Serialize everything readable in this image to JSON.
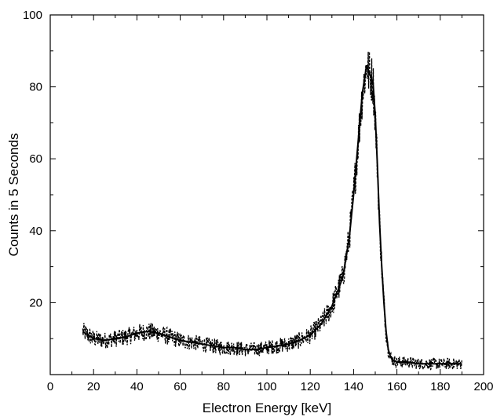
{
  "chart_data": {
    "type": "line",
    "title": "",
    "xlabel": "Electron Energy [keV]",
    "ylabel": "Counts in 5 Seconds",
    "xlim": [
      0,
      200
    ],
    "ylim": [
      0,
      100
    ],
    "x_ticks": [
      0,
      20,
      40,
      60,
      80,
      100,
      120,
      140,
      160,
      180,
      200
    ],
    "y_ticks": [
      20,
      40,
      60,
      80,
      100
    ],
    "grid": false,
    "legend": "none",
    "series": [
      {
        "color": "#000000",
        "style": "dashed-noisy",
        "x": [
          15,
          20,
          25,
          30,
          35,
          40,
          45,
          50,
          55,
          60,
          65,
          70,
          75,
          80,
          85,
          90,
          95,
          100,
          105,
          110,
          115,
          120,
          125,
          130,
          135,
          138,
          140,
          142,
          144,
          146,
          147,
          148,
          149,
          150,
          151,
          152,
          153,
          154,
          155,
          156,
          157,
          158,
          160,
          165,
          170,
          175,
          180,
          185,
          190
        ],
        "y": [
          12,
          10,
          9.5,
          10,
          10.5,
          11.5,
          12,
          11.5,
          10.5,
          9.5,
          9,
          8.5,
          8,
          7.5,
          7.5,
          7,
          7,
          7.5,
          8,
          8.5,
          9.5,
          11,
          14,
          19,
          27,
          38,
          50,
          64,
          78,
          86,
          84,
          83,
          81,
          72,
          58,
          42,
          30,
          20,
          12,
          7,
          5,
          4,
          3.5,
          3.5,
          3,
          3,
          3,
          3,
          3
        ]
      }
    ]
  }
}
